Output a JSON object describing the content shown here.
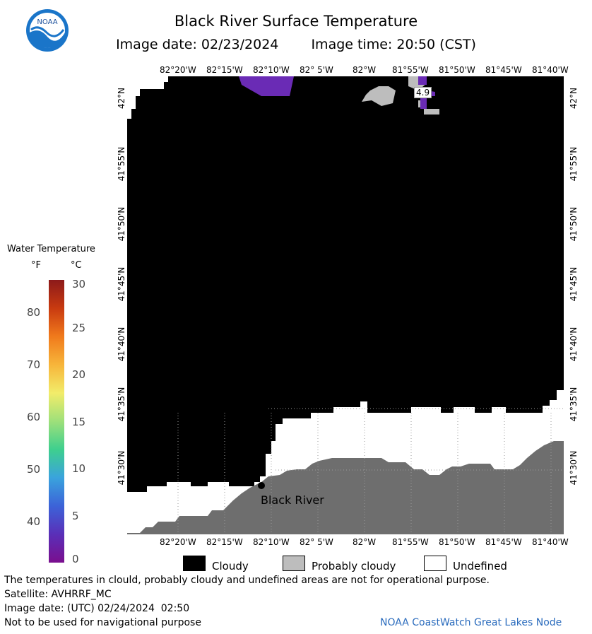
{
  "header": {
    "title": "Black River Surface Temperature",
    "image_date": "Image date: 02/23/2024",
    "image_time": "Image time: 20:50 (CST)"
  },
  "logo": {
    "text": "NOAA"
  },
  "map": {
    "lon_ticks": [
      "82°20'W",
      "82°15'W",
      "82°10'W",
      "82° 5'W",
      "82°W",
      "81°55'W",
      "81°50'W",
      "81°45'W",
      "81°40'W"
    ],
    "lat_ticks": [
      "42°N",
      "41°55'N",
      "41°50'N",
      "41°45'N",
      "41°40'N",
      "41°35'N",
      "41°30'N"
    ],
    "station": {
      "name": "Black River"
    },
    "temp_label": "4.9",
    "colors": {
      "cloudy": "#000000",
      "probably_cloudy": "#bdbdbd",
      "undefined": "#ffffff",
      "land": "#6e6e6e",
      "cold_water": "#6a2bb5"
    }
  },
  "colorbar": {
    "title": "Water Temperature",
    "unit_f": "°F",
    "unit_c": "°C",
    "f_ticks": [
      "80",
      "70",
      "60",
      "50",
      "40"
    ],
    "c_ticks": [
      "30",
      "25",
      "20",
      "15",
      "10",
      "5",
      "0"
    ]
  },
  "legend": {
    "cloudy": "Cloudy",
    "probably_cloudy": "Probably cloudy",
    "undefined": "Undefined"
  },
  "footer": {
    "disclaimer": "The temperatures in clould, probably cloudy and undefined areas are not for operational purpose.",
    "satellite": "Satellite: AVHRRF_MC",
    "utc_date": "Image date: (UTC) 02/24/2024  02:50",
    "nav": "Not to be used for navigational purpose",
    "credit": "NOAA CoastWatch Great Lakes Node"
  }
}
